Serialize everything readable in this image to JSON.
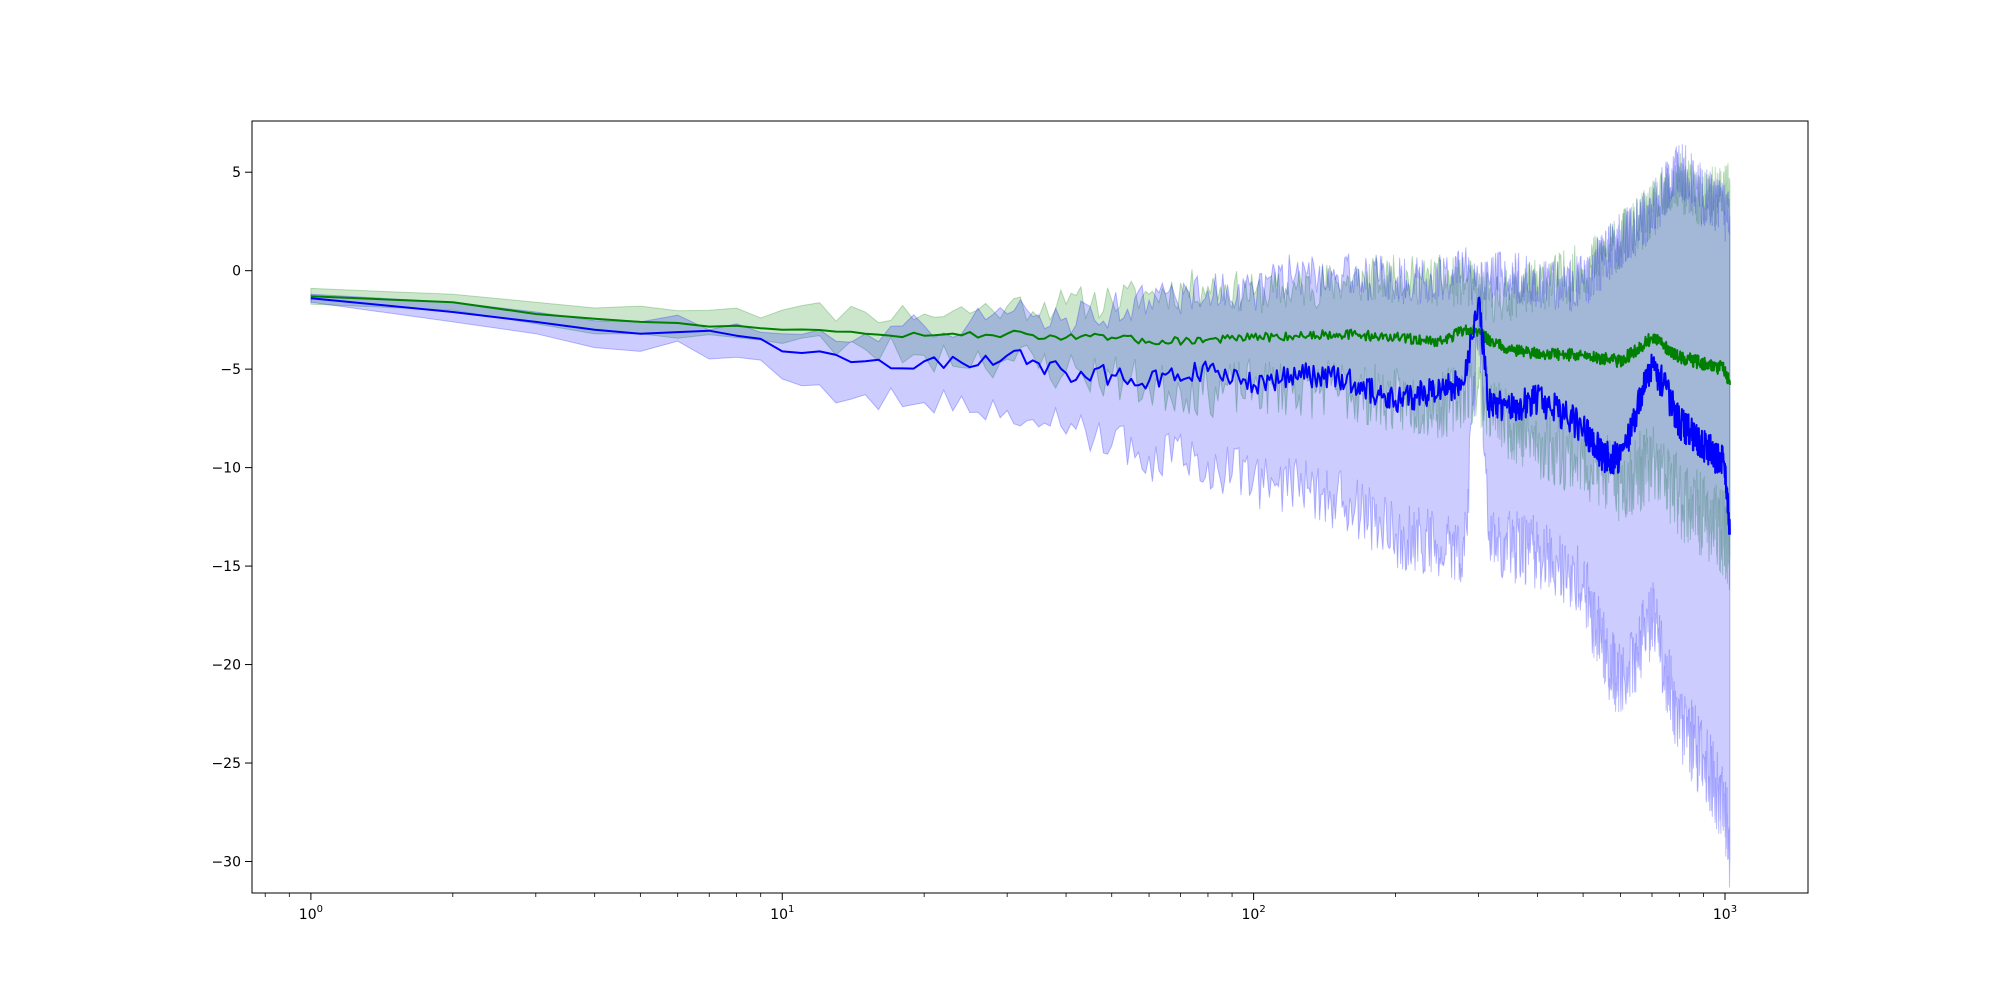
{
  "chart_data": {
    "type": "line",
    "title": "",
    "xlabel": "",
    "ylabel": "",
    "xscale": "log",
    "xlim": [
      0.75,
      1500
    ],
    "ylim": [
      -31.6,
      7.6
    ],
    "grid": false,
    "xticks": [
      {
        "value": 1,
        "base": "10",
        "exp": "0"
      },
      {
        "value": 10,
        "base": "10",
        "exp": "1"
      },
      {
        "value": 100,
        "base": "10",
        "exp": "2"
      },
      {
        "value": 1000,
        "base": "10",
        "exp": "3"
      }
    ],
    "yticks": [
      5,
      0,
      -5,
      -10,
      -15,
      -20,
      -25,
      -30
    ],
    "ytick_labels": [
      "5",
      "0",
      "−5",
      "−10",
      "−15",
      "−20",
      "−25",
      "−30"
    ],
    "series": [
      {
        "color": "#008000",
        "band_color": "#008000",
        "x": [
          1,
          2,
          3,
          5,
          8,
          10,
          15,
          20,
          30,
          40,
          50,
          60,
          80,
          100,
          150,
          200,
          250,
          280,
          300,
          315,
          350,
          400,
          500,
          600,
          700,
          800,
          900,
          1000,
          1024
        ],
        "mean": [
          -1.3,
          -1.6,
          -2.2,
          -2.6,
          -2.8,
          -3.0,
          -3.2,
          -3.3,
          -3.2,
          -3.4,
          -3.4,
          -3.6,
          -3.5,
          -3.4,
          -3.2,
          -3.4,
          -3.6,
          -3.0,
          -3.1,
          -3.5,
          -4.0,
          -4.2,
          -4.3,
          -4.6,
          -3.4,
          -4.4,
          -4.7,
          -5.0,
          -5.8
        ],
        "upper": [
          -0.9,
          -1.2,
          -1.6,
          -1.8,
          -1.9,
          -2.0,
          -2.1,
          -2.2,
          -1.8,
          -1.7,
          -1.5,
          -1.2,
          -0.8,
          -1.2,
          -0.6,
          -0.4,
          -0.6,
          -0.6,
          -1.0,
          -1.4,
          -1.2,
          -0.7,
          0.0,
          1.5,
          3.0,
          4.5,
          3.5,
          4.0,
          4.4
        ],
        "lower": [
          -1.7,
          -2.0,
          -2.7,
          -3.2,
          -3.4,
          -3.7,
          -4.0,
          -4.3,
          -4.5,
          -5.1,
          -5.4,
          -5.9,
          -6.1,
          -5.9,
          -6.0,
          -6.6,
          -6.9,
          -6.1,
          -6.0,
          -6.8,
          -7.8,
          -8.8,
          -9.6,
          -10.8,
          -9.8,
          -11.5,
          -12.5,
          -13.4,
          -14.5
        ]
      },
      {
        "color": "#0000ff",
        "band_color": "#0000ff",
        "x": [
          1,
          2,
          3,
          5,
          8,
          10,
          12,
          15,
          20,
          25,
          30,
          40,
          50,
          60,
          80,
          100,
          120,
          150,
          200,
          250,
          280,
          300,
          315,
          350,
          400,
          500,
          550,
          600,
          700,
          800,
          900,
          1000,
          1024
        ],
        "mean": [
          -1.4,
          -2.1,
          -2.6,
          -3.2,
          -3.3,
          -4.1,
          -4.1,
          -4.6,
          -4.6,
          -4.9,
          -4.3,
          -5.2,
          -5.3,
          -5.6,
          -5.1,
          -5.8,
          -5.3,
          -5.4,
          -6.6,
          -6.0,
          -5.7,
          -1.4,
          -6.7,
          -7.0,
          -6.5,
          -8.0,
          -9.4,
          -9.6,
          -4.6,
          -7.7,
          -8.9,
          -9.8,
          -13.4
        ],
        "upper": [
          -1.2,
          -1.6,
          -2.1,
          -2.6,
          -2.7,
          -3.2,
          -3.0,
          -3.2,
          -2.8,
          -2.6,
          -2.2,
          -2.4,
          -2.0,
          -1.5,
          -1.0,
          -1.1,
          -0.2,
          -0.2,
          -0.5,
          -0.4,
          0.0,
          -1.0,
          -0.5,
          -0.2,
          -0.8,
          -0.6,
          0.5,
          1.5,
          3.0,
          5.2,
          3.8,
          3.0,
          2.5
        ],
        "lower": [
          -1.6,
          -2.6,
          -3.2,
          -4.1,
          -4.4,
          -5.5,
          -5.8,
          -6.3,
          -6.7,
          -7.2,
          -7.1,
          -8.3,
          -8.9,
          -9.4,
          -9.7,
          -10.6,
          -10.8,
          -11.6,
          -13.4,
          -14.0,
          -14.5,
          -1.8,
          -13.7,
          -14.0,
          -14.3,
          -16.1,
          -19.2,
          -21.0,
          -17.6,
          -23.0,
          -24.8,
          -27.2,
          -29.8
        ]
      }
    ]
  }
}
